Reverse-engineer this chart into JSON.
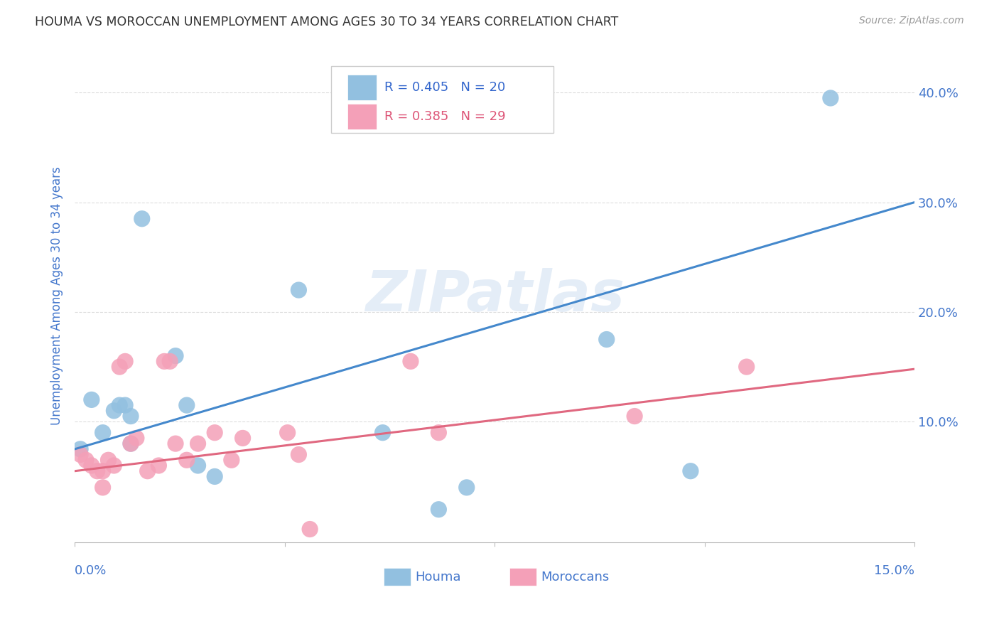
{
  "title": "HOUMA VS MOROCCAN UNEMPLOYMENT AMONG AGES 30 TO 34 YEARS CORRELATION CHART",
  "source": "Source: ZipAtlas.com",
  "ylabel": "Unemployment Among Ages 30 to 34 years",
  "ytick_labels": [
    "10.0%",
    "20.0%",
    "30.0%",
    "40.0%"
  ],
  "ytick_values": [
    0.1,
    0.2,
    0.3,
    0.4
  ],
  "xlim": [
    0.0,
    0.15
  ],
  "ylim": [
    -0.01,
    0.44
  ],
  "houma_color": "#92c0e0",
  "moroccan_color": "#f4a0b8",
  "houma_line_color": "#4488cc",
  "moroccan_line_color": "#e06880",
  "legend_text_color_blue": "#3366cc",
  "legend_text_color_pink": "#dd5577",
  "title_color": "#333333",
  "axis_label_color": "#4477cc",
  "source_color": "#999999",
  "watermark": "ZIPatlas",
  "houma_R": 0.405,
  "houma_N": 20,
  "moroccan_R": 0.385,
  "moroccan_N": 29,
  "houma_x": [
    0.001,
    0.003,
    0.005,
    0.007,
    0.008,
    0.009,
    0.01,
    0.01,
    0.012,
    0.018,
    0.02,
    0.022,
    0.025,
    0.04,
    0.055,
    0.065,
    0.07,
    0.095,
    0.11,
    0.135
  ],
  "houma_y": [
    0.075,
    0.12,
    0.09,
    0.11,
    0.115,
    0.115,
    0.08,
    0.105,
    0.285,
    0.16,
    0.115,
    0.06,
    0.05,
    0.22,
    0.09,
    0.02,
    0.04,
    0.175,
    0.055,
    0.395
  ],
  "moroccan_x": [
    0.001,
    0.002,
    0.003,
    0.004,
    0.005,
    0.005,
    0.006,
    0.007,
    0.008,
    0.009,
    0.01,
    0.011,
    0.013,
    0.015,
    0.016,
    0.017,
    0.018,
    0.02,
    0.022,
    0.025,
    0.028,
    0.03,
    0.038,
    0.04,
    0.042,
    0.06,
    0.065,
    0.1,
    0.12
  ],
  "moroccan_y": [
    0.07,
    0.065,
    0.06,
    0.055,
    0.055,
    0.04,
    0.065,
    0.06,
    0.15,
    0.155,
    0.08,
    0.085,
    0.055,
    0.06,
    0.155,
    0.155,
    0.08,
    0.065,
    0.08,
    0.09,
    0.065,
    0.085,
    0.09,
    0.07,
    0.002,
    0.155,
    0.09,
    0.105,
    0.15
  ],
  "grid_color": "#dddddd",
  "background_color": "#ffffff",
  "houma_trend_x": [
    0.0,
    0.15
  ],
  "houma_trend_y": [
    0.075,
    0.3
  ],
  "moroccan_trend_x": [
    0.0,
    0.15
  ],
  "moroccan_trend_y": [
    0.055,
    0.148
  ]
}
